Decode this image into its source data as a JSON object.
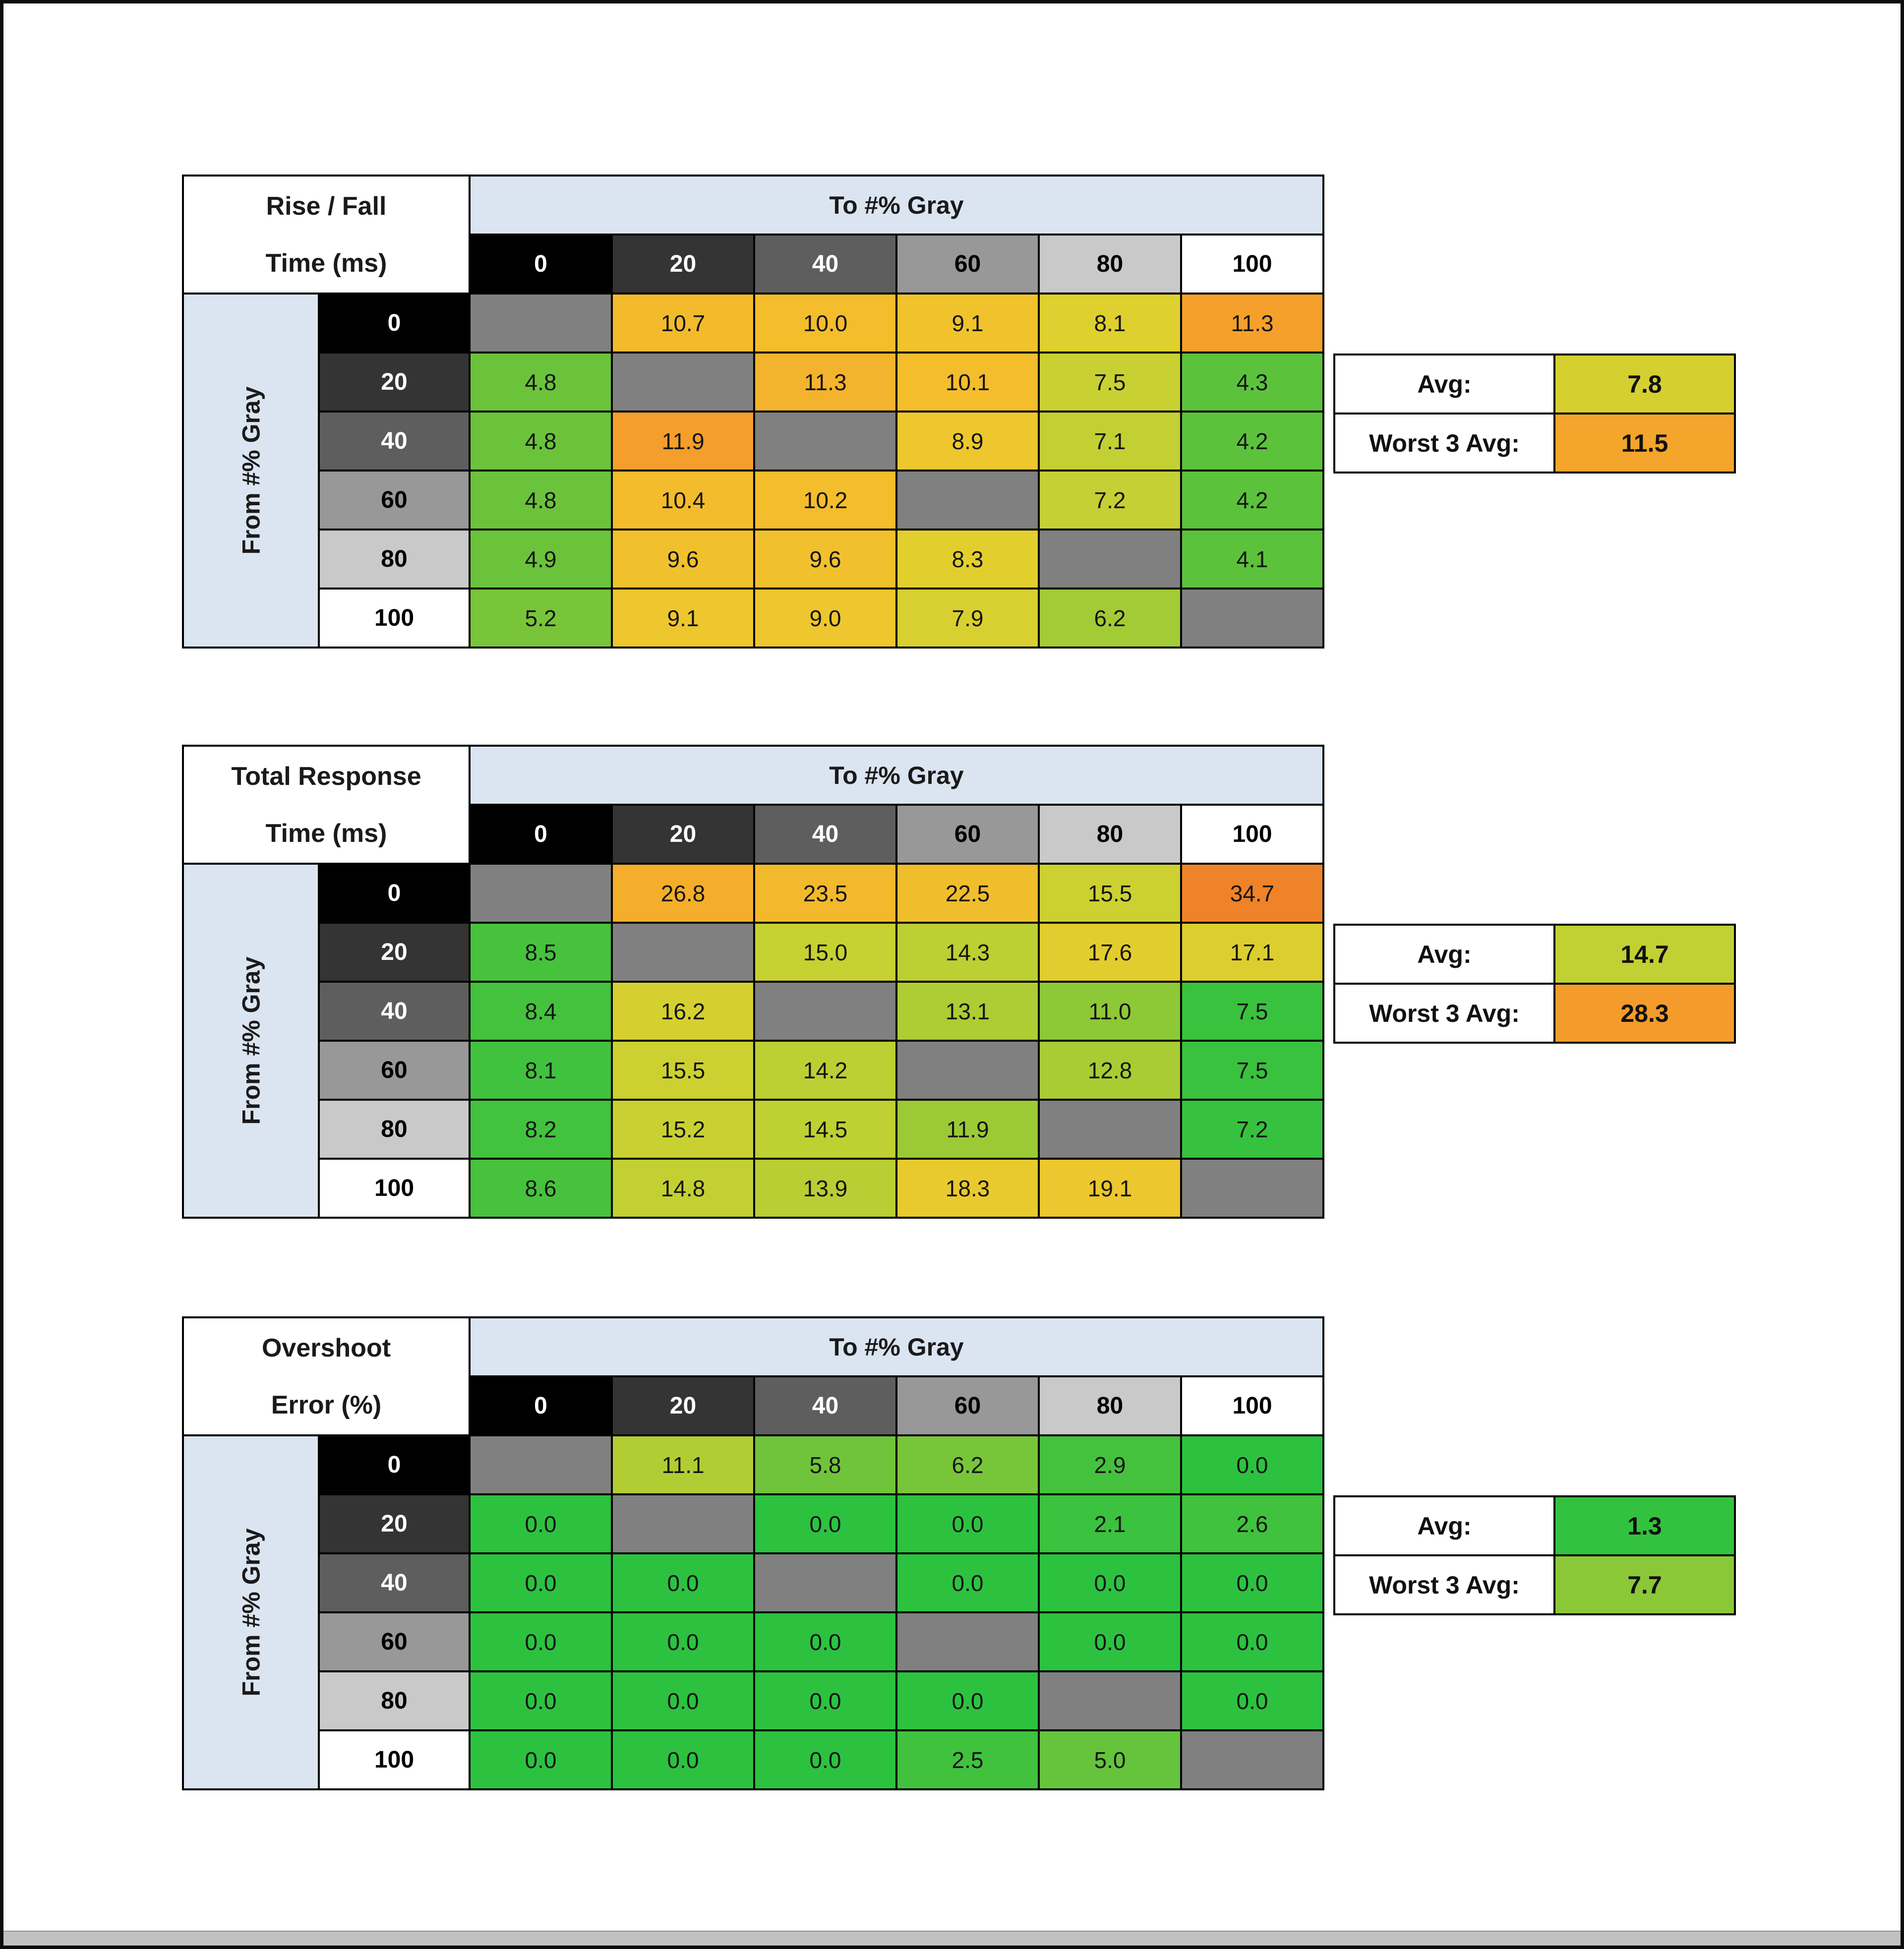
{
  "window": {
    "bg": "#ffffff",
    "frame": "#0d0d0d",
    "scrollbar_color": "#c1c1c1"
  },
  "gray_scale": {
    "levels": [
      "0",
      "20",
      "40",
      "60",
      "80",
      "100"
    ],
    "header_bg": [
      "#000000",
      "#343434",
      "#5e5e5e",
      "#989898",
      "#c9c9c9",
      "#ffffff"
    ],
    "header_fg": [
      "#ffffff",
      "#ffffff",
      "#ffffff",
      "#000000",
      "#000000",
      "#000000"
    ],
    "band_bg": "#dbe5f1",
    "diagonal_bg": "#808080"
  },
  "chart_data": [
    {
      "type": "heatmap",
      "title": "Rise / Fall Time (ms)",
      "title_line1": "Rise / Fall",
      "title_line2": "Time (ms)",
      "xlabel": "To #% Gray",
      "ylabel": "From #% Gray",
      "x_ticks": [
        "0",
        "20",
        "40",
        "60",
        "80",
        "100"
      ],
      "y_ticks": [
        "0",
        "20",
        "40",
        "60",
        "80",
        "100"
      ],
      "values": [
        [
          null,
          10.7,
          10.0,
          9.1,
          8.1,
          11.3
        ],
        [
          4.8,
          null,
          11.3,
          10.1,
          7.5,
          4.3
        ],
        [
          4.8,
          11.9,
          null,
          8.9,
          7.1,
          4.2
        ],
        [
          4.8,
          10.4,
          10.2,
          null,
          7.2,
          4.2
        ],
        [
          4.9,
          9.6,
          9.6,
          8.3,
          null,
          4.1
        ],
        [
          5.2,
          9.1,
          9.0,
          7.9,
          6.2,
          null
        ]
      ],
      "cell_colors": [
        [
          null,
          "#f3bb2c",
          "#f3bd2c",
          "#f0c32d",
          "#ded02f",
          "#f5a02b"
        ],
        [
          "#6bc33b",
          null,
          "#f4b32c",
          "#f3bd2c",
          "#c9d132",
          "#5cc23c"
        ],
        [
          "#6bc33b",
          "#f49e2b",
          null,
          "#edc72d",
          "#c2d033",
          "#5cc23c"
        ],
        [
          "#6bc33b",
          "#f3bc2c",
          "#f3bd2c",
          null,
          "#c4d033",
          "#5cc23c"
        ],
        [
          "#6bc33b",
          "#f1c12d",
          "#f1c12d",
          "#e2cf2e",
          null,
          "#5cc23c"
        ],
        [
          "#79c53a",
          "#eec62d",
          "#edc72d",
          "#d8d030",
          "#a3cb35",
          null
        ]
      ],
      "avg_label": "Avg:",
      "avg_value": 7.8,
      "avg_color": "#d5d030",
      "worst_label": "Worst 3 Avg:",
      "worst_value": 11.5,
      "worst_color": "#f4a52b"
    },
    {
      "type": "heatmap",
      "title": "Total Response Time (ms)",
      "title_line1": "Total Response",
      "title_line2": "Time (ms)",
      "xlabel": "To #% Gray",
      "ylabel": "From #% Gray",
      "x_ticks": [
        "0",
        "20",
        "40",
        "60",
        "80",
        "100"
      ],
      "y_ticks": [
        "0",
        "20",
        "40",
        "60",
        "80",
        "100"
      ],
      "values": [
        [
          null,
          26.8,
          23.5,
          22.5,
          15.5,
          34.7
        ],
        [
          8.5,
          null,
          15.0,
          14.3,
          17.6,
          17.1
        ],
        [
          8.4,
          16.2,
          null,
          13.1,
          11.0,
          7.5
        ],
        [
          8.1,
          15.5,
          14.2,
          null,
          12.8,
          7.5
        ],
        [
          8.2,
          15.2,
          14.5,
          11.9,
          null,
          7.2
        ],
        [
          8.6,
          14.8,
          13.9,
          18.3,
          19.1,
          null
        ]
      ],
      "cell_colors": [
        [
          null,
          "#f4ae2b",
          "#f2b92c",
          "#f0bd2c",
          "#ccd131",
          "#ef8329"
        ],
        [
          "#46c23d",
          null,
          "#c6d132",
          "#bdcf33",
          "#e2cd2e",
          "#ddce2f"
        ],
        [
          "#44c23d",
          "#d5d030",
          null,
          "#aecc34",
          "#8dc837",
          "#39c23e"
        ],
        [
          "#41c23e",
          "#ccd131",
          "#bccf33",
          null,
          "#a9cc34",
          "#39c23e"
        ],
        [
          "#42c23e",
          "#c9d132",
          "#bfd032",
          "#9cca36",
          null,
          "#36c23f"
        ],
        [
          "#47c23d",
          "#c3d032",
          "#b8ce33",
          "#e8ca2e",
          "#ecc72d",
          null
        ]
      ],
      "avg_label": "Avg:",
      "avg_value": 14.7,
      "avg_color": "#c1d032",
      "worst_label": "Worst 3 Avg:",
      "worst_value": 28.3,
      "worst_color": "#f49c2b"
    },
    {
      "type": "heatmap",
      "title": "Overshoot Error (%)",
      "title_line1": "Overshoot",
      "title_line2": "Error (%)",
      "xlabel": "To #% Gray",
      "ylabel": "From #% Gray",
      "x_ticks": [
        "0",
        "20",
        "40",
        "60",
        "80",
        "100"
      ],
      "y_ticks": [
        "0",
        "20",
        "40",
        "60",
        "80",
        "100"
      ],
      "values": [
        [
          null,
          11.1,
          5.8,
          6.2,
          2.9,
          0.0
        ],
        [
          0.0,
          null,
          0.0,
          0.0,
          2.1,
          2.6
        ],
        [
          0.0,
          0.0,
          null,
          0.0,
          0.0,
          0.0
        ],
        [
          0.0,
          0.0,
          0.0,
          null,
          0.0,
          0.0
        ],
        [
          0.0,
          0.0,
          0.0,
          0.0,
          null,
          0.0
        ],
        [
          0.0,
          0.0,
          0.0,
          2.5,
          5.0,
          null
        ]
      ],
      "cell_colors": [
        [
          null,
          "#b2cd34",
          "#70c43b",
          "#79c53a",
          "#45c23d",
          "#2cc240"
        ],
        [
          "#2cc240",
          null,
          "#2cc240",
          "#2cc240",
          "#3bc23e",
          "#41c23e"
        ],
        [
          "#2cc240",
          "#2cc240",
          null,
          "#2cc240",
          "#2cc240",
          "#2cc240"
        ],
        [
          "#2cc240",
          "#2cc240",
          "#2cc240",
          null,
          "#2cc240",
          "#2cc240"
        ],
        [
          "#2cc240",
          "#2cc240",
          "#2cc240",
          "#2cc240",
          null,
          "#2cc240"
        ],
        [
          "#2cc240",
          "#2cc240",
          "#2cc240",
          "#40c23e",
          "#65c43c",
          null
        ]
      ],
      "avg_label": "Avg:",
      "avg_value": 1.3,
      "avg_color": "#33c23f",
      "worst_label": "Worst 3 Avg:",
      "worst_value": 7.7,
      "worst_color": "#8bc837"
    }
  ]
}
